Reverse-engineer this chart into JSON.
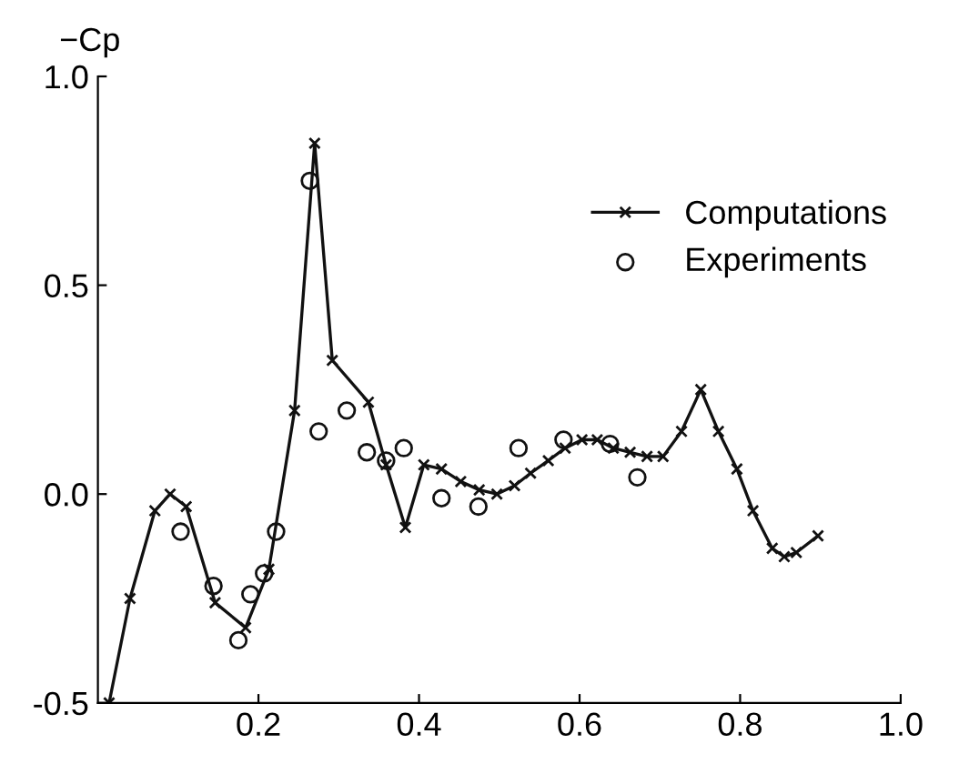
{
  "chart_data": {
    "type": "line",
    "ylabel": "−Cp",
    "xlim": [
      0,
      1.0
    ],
    "ylim": [
      -0.5,
      1.0
    ],
    "xticks": [
      {
        "value": 0.2,
        "label": "0.2"
      },
      {
        "value": 0.4,
        "label": "0.4"
      },
      {
        "value": 0.6,
        "label": "0.6"
      },
      {
        "value": 0.8,
        "label": "0.8"
      },
      {
        "value": 1.0,
        "label": "1.0"
      }
    ],
    "yticks": [
      {
        "value": -0.5,
        "label": "-0.5"
      },
      {
        "value": 0.0,
        "label": "0.0"
      },
      {
        "value": 0.5,
        "label": "0.5"
      },
      {
        "value": 1.0,
        "label": "1.0"
      }
    ],
    "legend": "top right",
    "grid": false,
    "series": [
      {
        "name": "Computations",
        "marker": "cross",
        "color": "#111111",
        "x": [
          0.014,
          0.04,
          0.071,
          0.09,
          0.11,
          0.146,
          0.184,
          0.213,
          0.245,
          0.27,
          0.292,
          0.337,
          0.359,
          0.383,
          0.406,
          0.428,
          0.452,
          0.475,
          0.497,
          0.519,
          0.539,
          0.561,
          0.582,
          0.603,
          0.622,
          0.642,
          0.663,
          0.684,
          0.704,
          0.727,
          0.751,
          0.773,
          0.796,
          0.816,
          0.84,
          0.855,
          0.87,
          0.897
        ],
        "values": [
          -0.5,
          -0.25,
          -0.04,
          0.0,
          -0.03,
          -0.26,
          -0.32,
          -0.18,
          0.2,
          0.84,
          0.32,
          0.22,
          0.07,
          -0.08,
          0.07,
          0.06,
          0.03,
          0.01,
          0.0,
          0.02,
          0.05,
          0.08,
          0.11,
          0.13,
          0.13,
          0.11,
          0.1,
          0.09,
          0.09,
          0.15,
          0.25,
          0.15,
          0.06,
          -0.04,
          -0.13,
          -0.15,
          -0.14,
          -0.1
        ]
      },
      {
        "name": "Experiments",
        "type": "scatter",
        "marker": "circle",
        "color": "#111111",
        "x": [
          0.103,
          0.144,
          0.175,
          0.19,
          0.207,
          0.222,
          0.264,
          0.275,
          0.31,
          0.335,
          0.359,
          0.381,
          0.428,
          0.474,
          0.524,
          0.58,
          0.638,
          0.672
        ],
        "values": [
          -0.09,
          -0.22,
          -0.35,
          -0.24,
          -0.19,
          -0.09,
          0.75,
          0.15,
          0.2,
          0.1,
          0.08,
          0.11,
          -0.01,
          -0.03,
          0.11,
          0.13,
          0.12,
          0.04
        ]
      }
    ]
  }
}
